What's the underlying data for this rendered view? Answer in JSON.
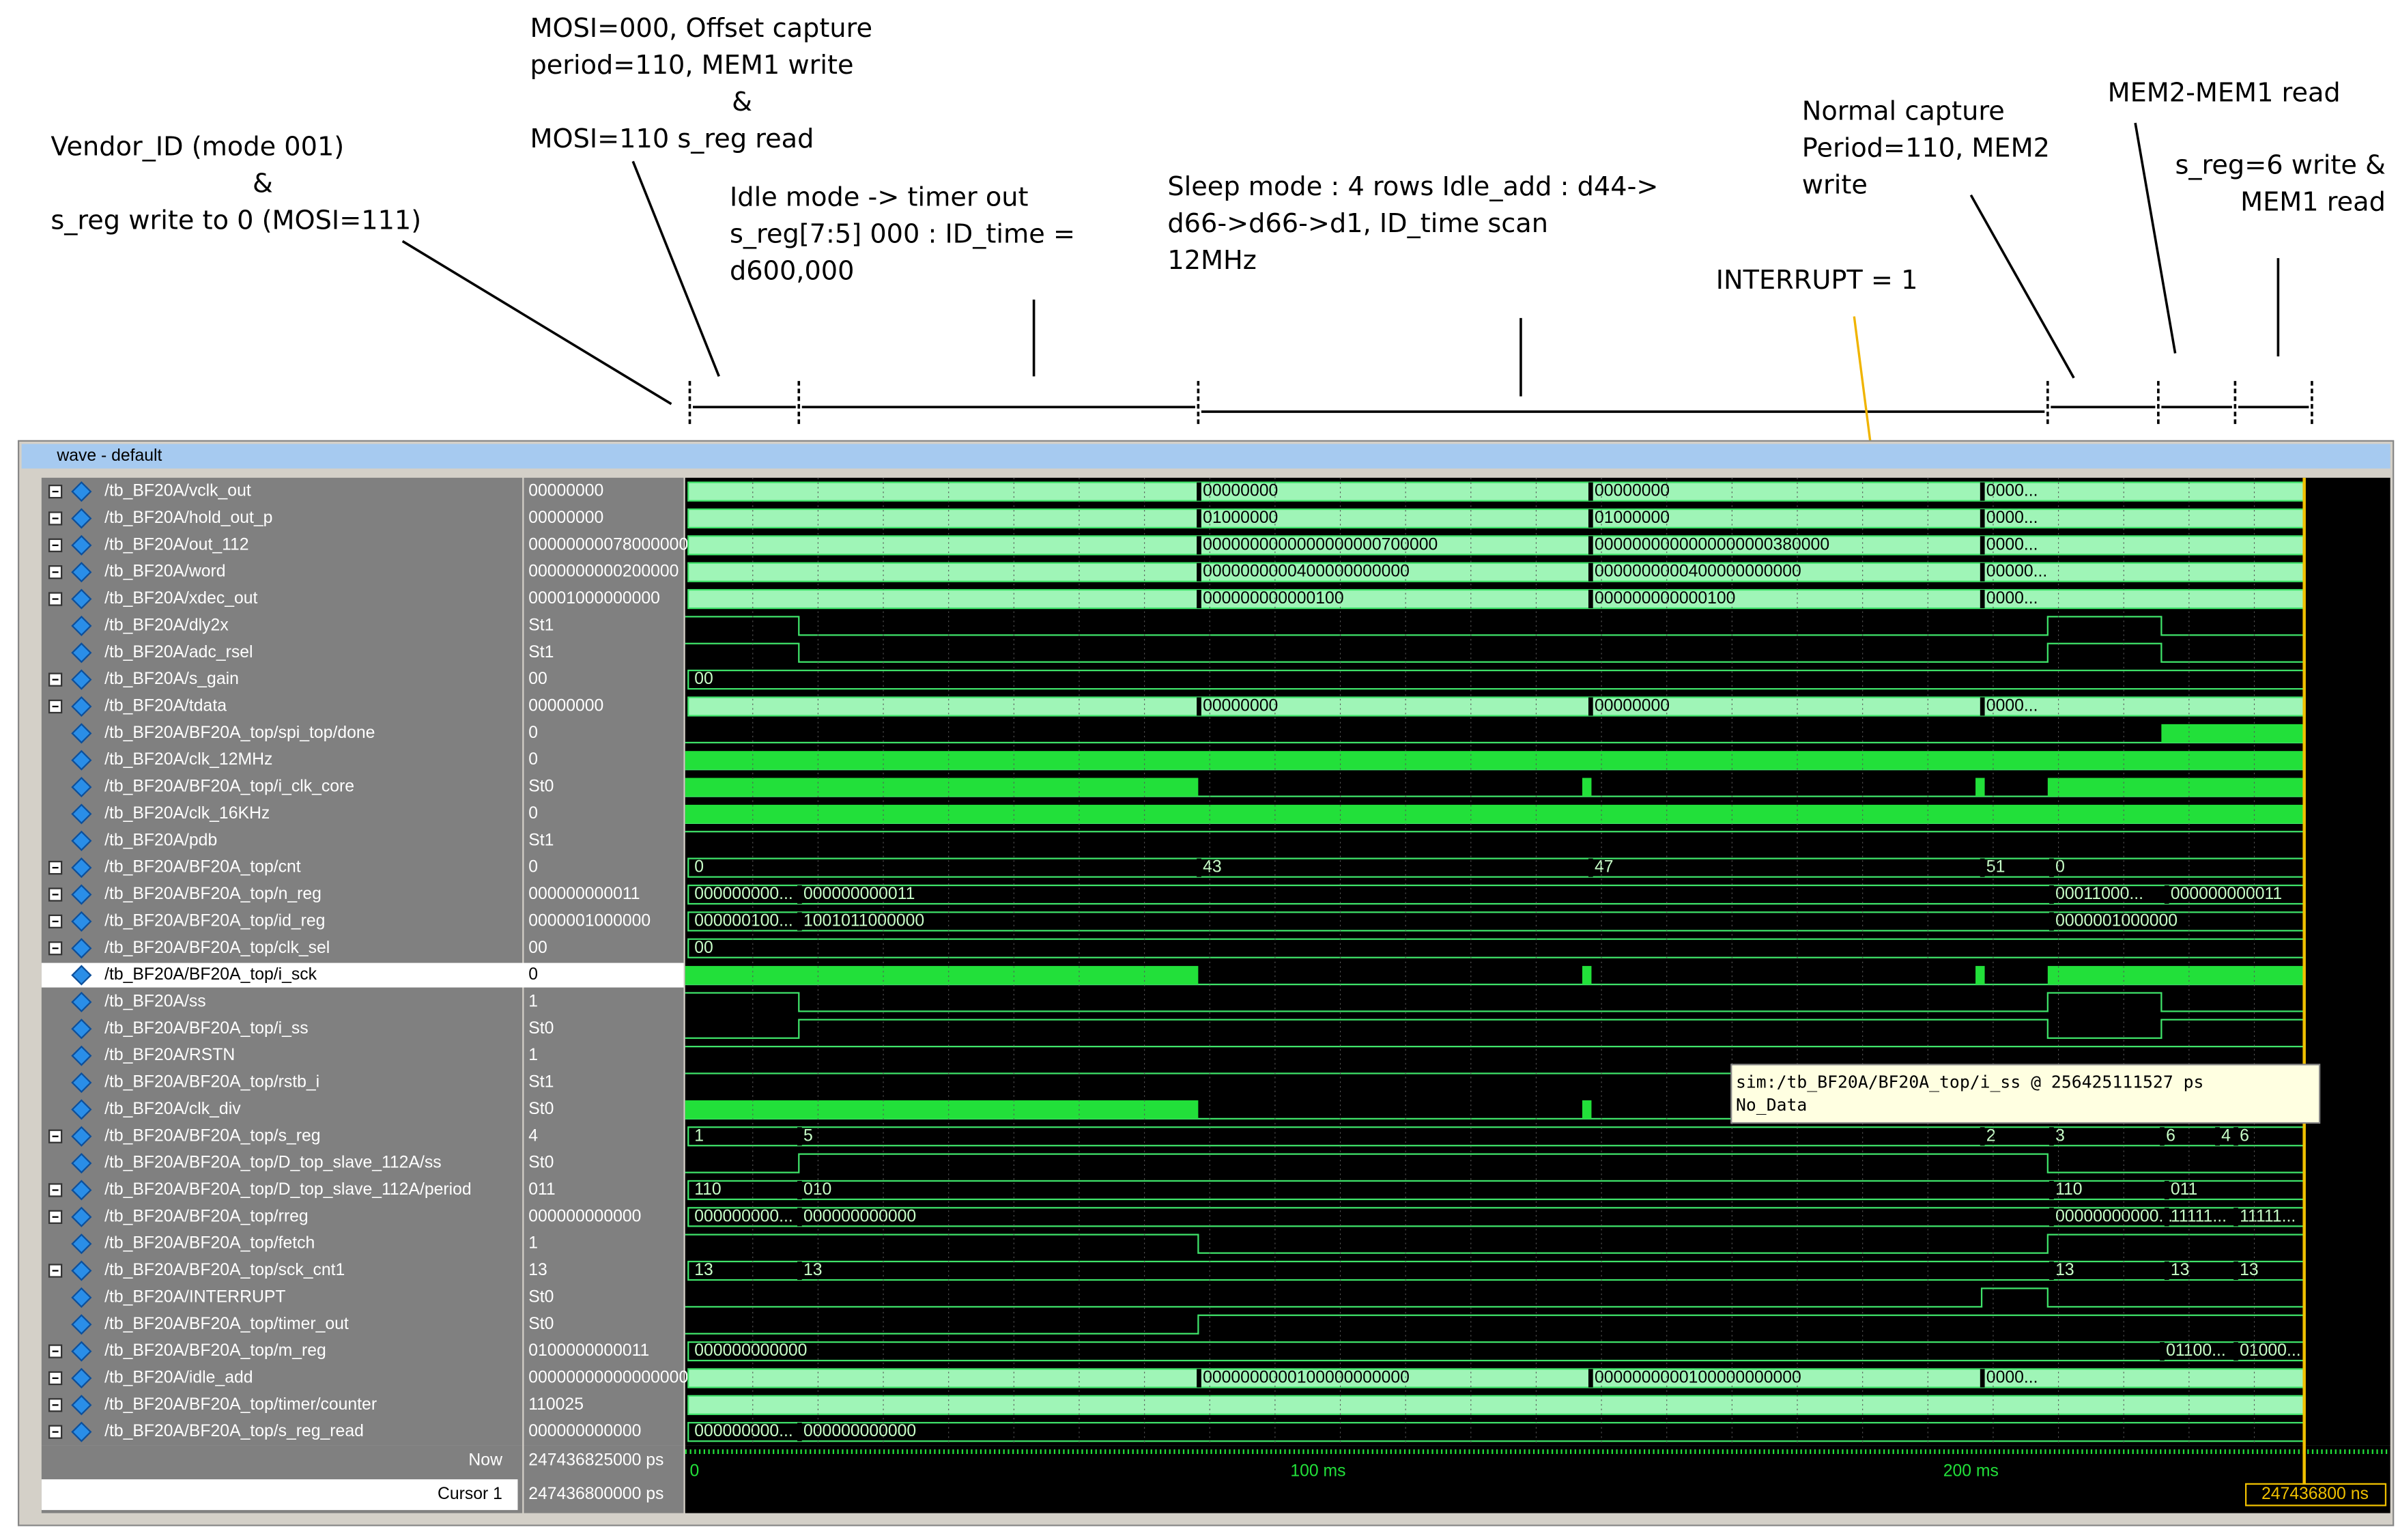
{
  "window_title": "wave - default",
  "annotations": [
    {
      "lines": [
        "Vendor_ID (mode 001)",
        "&",
        "s_reg write to 0 (MOSI=111)"
      ]
    },
    {
      "lines": [
        "MOSI=000, Offset capture",
        "period=110, MEM1 write",
        "&",
        "MOSI=110   s_reg read"
      ]
    },
    {
      "lines": [
        "Idle mode -> timer out",
        "s_reg[7:5] 000 : ID_time =",
        "d600,000"
      ]
    },
    {
      "lines": [
        "Sleep mode : 4 rows  Idle_add : d44->",
        "d66->d66->d1, ID_time   scan",
        "12MHz"
      ]
    },
    {
      "lines": [
        "INTERRUPT = 1"
      ]
    },
    {
      "lines": [
        "Normal capture",
        "Period=110, MEM2",
        "write"
      ]
    },
    {
      "lines": [
        "MEM2-MEM1 read"
      ]
    },
    {
      "lines": [
        "s_reg=6 write &",
        "MEM1 read"
      ]
    }
  ],
  "signals": [
    {
      "name": "/tb_BF20A/vclk_out",
      "value": "00000000",
      "bus": true,
      "wave_labels": [
        "00000000",
        "00000000",
        "0000..."
      ]
    },
    {
      "name": "/tb_BF20A/hold_out_p",
      "value": "00000000",
      "bus": true,
      "wave_labels": [
        "01000000",
        "01000000",
        "0000..."
      ]
    },
    {
      "name": "/tb_BF20A/out_112",
      "value": "0000000007800000000",
      "bus": true,
      "wave_labels": [
        "0000000000000000000700000",
        "0000000000000000000380000",
        "0000..."
      ]
    },
    {
      "name": "/tb_BF20A/word",
      "value": "0000000000200000",
      "bus": true,
      "wave_labels": [
        "0000000000400000000000",
        "0000000000400000000000",
        "00000..."
      ]
    },
    {
      "name": "/tb_BF20A/xdec_out",
      "value": "00001000000000",
      "bus": true,
      "wave_labels": [
        "000000000000100",
        "000000000000100",
        "0000..."
      ]
    },
    {
      "name": "/tb_BF20A/dly2x",
      "value": "St1",
      "bus": false,
      "wave_labels": []
    },
    {
      "name": "/tb_BF20A/adc_rsel",
      "value": "St1",
      "bus": false,
      "wave_labels": []
    },
    {
      "name": "/tb_BF20A/s_gain",
      "value": "00",
      "bus": true,
      "wave_labels": [
        "00"
      ]
    },
    {
      "name": "/tb_BF20A/tdata",
      "value": "00000000",
      "bus": true,
      "wave_labels": [
        "00000000",
        "00000000",
        "0000..."
      ]
    },
    {
      "name": "/tb_BF20A/BF20A_top/spi_top/done",
      "value": "0",
      "bus": false,
      "wave_labels": []
    },
    {
      "name": "/tb_BF20A/clk_12MHz",
      "value": "0",
      "bus": false,
      "wave_labels": []
    },
    {
      "name": "/tb_BF20A/BF20A_top/i_clk_core",
      "value": "St0",
      "bus": false,
      "wave_labels": []
    },
    {
      "name": "/tb_BF20A/clk_16KHz",
      "value": "0",
      "bus": false,
      "wave_labels": []
    },
    {
      "name": "/tb_BF20A/pdb",
      "value": "St1",
      "bus": false,
      "wave_labels": []
    },
    {
      "name": "/tb_BF20A/BF20A_top/cnt",
      "value": "0",
      "bus": true,
      "wave_labels": [
        "0",
        "43",
        "47",
        "51",
        "0"
      ]
    },
    {
      "name": "/tb_BF20A/BF20A_top/n_reg",
      "value": "000000000011",
      "bus": true,
      "wave_labels": [
        "000000000...",
        "000000000011",
        "00011000...",
        "000000000011"
      ]
    },
    {
      "name": "/tb_BF20A/BF20A_top/id_reg",
      "value": "0000001000000",
      "bus": true,
      "wave_labels": [
        "000000100...",
        "1001011000000",
        "0000001000000"
      ]
    },
    {
      "name": "/tb_BF20A/BF20A_top/clk_sel",
      "value": "00",
      "bus": true,
      "wave_labels": [
        "00"
      ]
    },
    {
      "name": "/tb_BF20A/BF20A_top/i_sck",
      "value": "0",
      "bus": false,
      "selected": true,
      "wave_labels": []
    },
    {
      "name": "/tb_BF20A/ss",
      "value": "1",
      "bus": false,
      "wave_labels": []
    },
    {
      "name": "/tb_BF20A/BF20A_top/i_ss",
      "value": "St0",
      "bus": false,
      "wave_labels": []
    },
    {
      "name": "/tb_BF20A/RSTN",
      "value": "1",
      "bus": false,
      "wave_labels": []
    },
    {
      "name": "/tb_BF20A/BF20A_top/rstb_i",
      "value": "St1",
      "bus": false,
      "wave_labels": []
    },
    {
      "name": "/tb_BF20A/clk_div",
      "value": "St0",
      "bus": false,
      "wave_labels": []
    },
    {
      "name": "/tb_BF20A/BF20A_top/s_reg",
      "value": "4",
      "bus": true,
      "wave_labels": [
        "1",
        "5",
        "2",
        "3",
        "6",
        "4",
        "6"
      ]
    },
    {
      "name": "/tb_BF20A/BF20A_top/D_top_slave_112A/ss",
      "value": "St0",
      "bus": false,
      "wave_labels": []
    },
    {
      "name": "/tb_BF20A/BF20A_top/D_top_slave_112A/period",
      "value": "011",
      "bus": true,
      "wave_labels": [
        "110",
        "010",
        "110",
        "011"
      ]
    },
    {
      "name": "/tb_BF20A/BF20A_top/rreg",
      "value": "000000000000",
      "bus": true,
      "wave_labels": [
        "000000000...",
        "000000000000",
        "00000000000...",
        "11111...",
        "11111..."
      ]
    },
    {
      "name": "/tb_BF20A/BF20A_top/fetch",
      "value": "1",
      "bus": false,
      "wave_labels": []
    },
    {
      "name": "/tb_BF20A/BF20A_top/sck_cnt1",
      "value": "13",
      "bus": true,
      "wave_labels": [
        "13",
        "13",
        "13",
        "13",
        "13"
      ]
    },
    {
      "name": "/tb_BF20A/INTERRUPT",
      "value": "St0",
      "bus": false,
      "wave_labels": []
    },
    {
      "name": "/tb_BF20A/BF20A_top/timer_out",
      "value": "St0",
      "bus": false,
      "wave_labels": []
    },
    {
      "name": "/tb_BF20A/BF20A_top/m_reg",
      "value": "0100000000011",
      "bus": true,
      "wave_labels": [
        "000000000000",
        "01100...",
        "01000..."
      ]
    },
    {
      "name": "/tb_BF20A/idle_add",
      "value": "00000000000000000",
      "bus": true,
      "wave_labels": [
        "0000000000100000000000",
        "0000000000100000000000",
        "0000..."
      ]
    },
    {
      "name": "/tb_BF20A/BF20A_top/timer/counter",
      "value": "110025",
      "bus": true,
      "wave_labels": []
    },
    {
      "name": "/tb_BF20A/BF20A_top/s_reg_read",
      "value": "000000000000",
      "bus": true,
      "wave_labels": [
        "000000000...",
        "000000000000"
      ]
    }
  ],
  "now": {
    "label": "Now",
    "value": "247436825000 ps"
  },
  "cursor": {
    "label": "Cursor 1",
    "value": "247436800000 ps"
  },
  "time_axis": [
    "0",
    "100 ms",
    "200 ms"
  ],
  "cursor_time": "247436800 ns",
  "tooltip": [
    "sim:/tb_BF20A/BF20A_top/i_ss @ 256425111527 ps",
    "No_Data"
  ]
}
